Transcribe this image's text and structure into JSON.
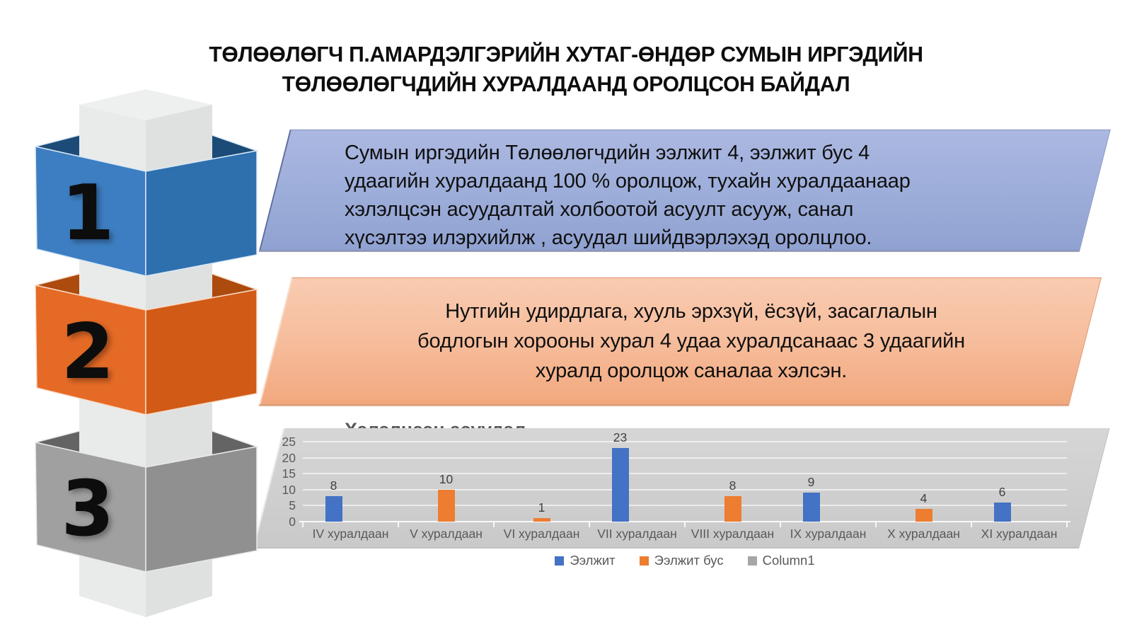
{
  "slide": {
    "title_line1": "ТӨЛӨӨЛӨГЧ П.АМАРДЭЛГЭРИЙН ХУТАГ-ӨНДӨР СУМЫН ИРГЭДИЙН",
    "title_line2": "ТӨЛӨӨЛӨГЧДИЙН ХУРАЛДААНД  ОРОЛЦСОН БАЙДАЛ"
  },
  "pillar": {
    "blocks": [
      {
        "label": "1",
        "face": "#3d7ec2",
        "side": "#2e6fae",
        "band": "#1c4b78",
        "edge": "#d9e8f6"
      },
      {
        "label": "2",
        "face": "#e56a26",
        "side": "#d15a17",
        "band": "#ad4a0e",
        "edge": "#f8dcc8"
      },
      {
        "label": "3",
        "face": "#a0a0a0",
        "side": "#909090",
        "band": "#646464",
        "edge": "#e9e9e9"
      }
    ],
    "pillar_colors": {
      "top": "#eef0ef",
      "left": "#e9ebea",
      "right": "#dfe1e0"
    }
  },
  "callouts": {
    "blue": {
      "fill": "#9fafdb",
      "lines": [
        "Сумын иргэдийн Төлөөлөгчдийн ээлжит 4, ээлжит бус 4",
        "удаагийн хуралдаанд 100 % оролцож, тухайн хуралдаанаар",
        "хэлэлцсэн  асуудалтай холбоотой асуулт асууж, санал",
        "хүсэлтээ илэрхийлж , асуудал шийдвэрлэхэд оролцлоо."
      ]
    },
    "orange": {
      "fill": "#f6bd9c",
      "lines": [
        "Нутгийн удирдлага, хууль эрхзүй, ёсзүй, засаглалын",
        "бодлогын хорооны хурал 4 удаа хуралдсанаас 3 удаагийн",
        "хуралд  оролцож саналаа хэлсэн."
      ]
    }
  },
  "chart_data": {
    "type": "bar",
    "title": "Хэлэлцсэн асуудал",
    "categories": [
      "IV хуралдаан",
      "V  хуралдаан",
      "VI хуралдаан",
      "VII хуралдаан",
      "VIII хуралдаан",
      "IX хуралдаан",
      "X хуралдаан",
      "XI хуралдаан"
    ],
    "series": [
      {
        "name": "Ээлжит",
        "color": "#4472c4",
        "values": [
          8,
          null,
          null,
          23,
          null,
          9,
          null,
          6
        ]
      },
      {
        "name": "Ээлжит бус",
        "color": "#ed7d31",
        "values": [
          null,
          10,
          1,
          null,
          8,
          null,
          4,
          null
        ]
      },
      {
        "name": "Column1",
        "color": "#a6a6a6",
        "values": [
          null,
          null,
          null,
          null,
          null,
          null,
          null,
          null
        ]
      }
    ],
    "y_ticks": [
      0,
      5,
      10,
      15,
      20,
      25
    ],
    "ylim": [
      0,
      25
    ],
    "xlabel": "",
    "ylabel": "",
    "grid": true,
    "legend_position": "bottom",
    "panel_color": "#d0d0d0"
  }
}
